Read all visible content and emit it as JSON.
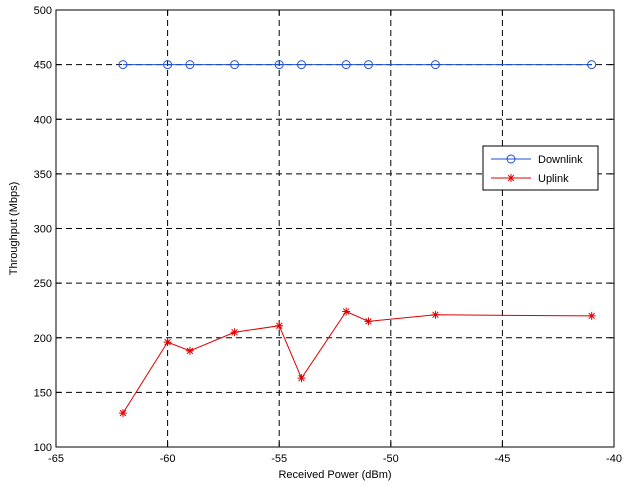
{
  "chart_data": {
    "type": "line",
    "xlabel": "Received Power (dBm)",
    "ylabel": "Throughput (Mbps)",
    "xlim": [
      -65,
      -40
    ],
    "ylim": [
      100,
      500
    ],
    "xticks": [
      -65,
      -60,
      -55,
      -50,
      -45,
      -40
    ],
    "yticks": [
      100,
      150,
      200,
      250,
      300,
      350,
      400,
      450,
      500
    ],
    "grid": true,
    "legend_position": "upper-right",
    "series": [
      {
        "name": "Downlink",
        "color": "#1f4fd6",
        "marker": "circle",
        "x": [
          -62,
          -60,
          -59,
          -57,
          -55,
          -54,
          -52,
          -51,
          -48,
          -41
        ],
        "y": [
          450,
          450,
          450,
          450,
          450,
          450,
          450,
          450,
          450,
          450
        ]
      },
      {
        "name": "Uplink",
        "color": "#e00000",
        "marker": "star",
        "x": [
          -62,
          -60,
          -59,
          -57,
          -55,
          -54,
          -52,
          -51,
          -48,
          -41
        ],
        "y": [
          131,
          196,
          188,
          205,
          211,
          163,
          224,
          215,
          221,
          220
        ]
      }
    ]
  }
}
